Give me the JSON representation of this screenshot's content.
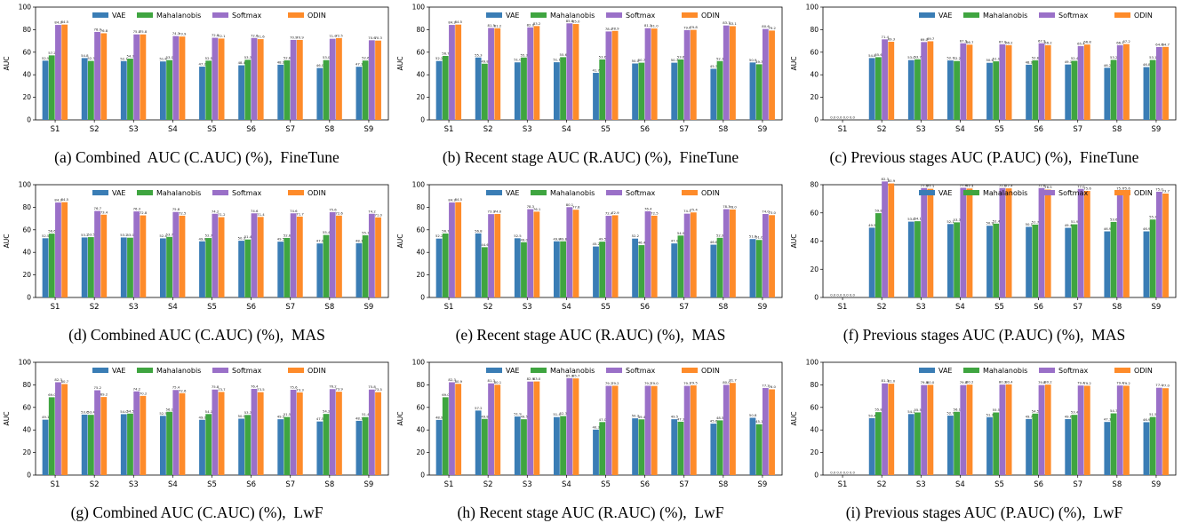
{
  "legend_labels": [
    "VAE",
    "Mahalanobis",
    "Softmax",
    "ODIN"
  ],
  "colors": [
    "#3A7DB5",
    "#3FA540",
    "#9A70C8",
    "#FE8B2A"
  ],
  "chart_data": [
    {
      "type": "bar",
      "prefix": "(a)",
      "title": "Combined  AUC (C.AUC) (%),  FineTune",
      "ylabel": "AUC",
      "ylim": [
        0,
        100
      ],
      "yticks": [
        0,
        20,
        40,
        60,
        80,
        100
      ],
      "categories": [
        "S1",
        "S2",
        "S3",
        "S4",
        "S5",
        "S6",
        "S7",
        "S8",
        "S9"
      ],
      "legend": "top",
      "series": [
        {
          "name": "VAE",
          "values": [
            52.5,
            54.8,
            52.1,
            51.8,
            47.2,
            48.4,
            48.9,
            46.0,
            47.1
          ]
        },
        {
          "name": "Mahalanobis",
          "values": [
            57.2,
            52.3,
            54.3,
            53.0,
            52.5,
            53.3,
            52.8,
            53.0,
            52.6
          ]
        },
        {
          "name": "Softmax",
          "values": [
            84.2,
            78.0,
            75.8,
            74.3,
            72.8,
            72.6,
            70.9,
            71.9,
            70.6
          ]
        },
        {
          "name": "ODIN",
          "values": [
            84.5,
            76.8,
            75.8,
            73.9,
            72.1,
            71.6,
            70.9,
            72.5,
            70.3
          ]
        }
      ]
    },
    {
      "type": "bar",
      "prefix": "(b)",
      "title": "Recent stage AUC (R.AUC) (%),  FineTune",
      "ylabel": "AUC",
      "ylim": [
        0,
        100
      ],
      "yticks": [
        0,
        20,
        40,
        60,
        80,
        100
      ],
      "categories": [
        "S1",
        "S2",
        "S3",
        "S4",
        "S5",
        "S6",
        "S7",
        "S8",
        "S9"
      ],
      "legend": "top",
      "series": [
        {
          "name": "VAE",
          "values": [
            52.2,
            55.3,
            51.0,
            51.1,
            41.7,
            50.0,
            50.7,
            45.3,
            50.9
          ]
        },
        {
          "name": "Mahalanobis",
          "values": [
            56.7,
            49.8,
            55.3,
            55.6,
            53.6,
            50.7,
            53.6,
            52.1,
            49.3
          ]
        },
        {
          "name": "Softmax",
          "values": [
            84.2,
            81.5,
            82.0,
            85.6,
            78.4,
            81.3,
            79.6,
            83.7,
            80.6
          ]
        },
        {
          "name": "ODIN",
          "values": [
            84.5,
            81.2,
            83.2,
            85.0,
            78.9,
            81.0,
            79.8,
            83.1,
            79.2
          ]
        }
      ]
    },
    {
      "type": "bar",
      "prefix": "(c)",
      "title": "Previous stages AUC (P.AUC) (%),  FineTune",
      "ylabel": "AUC",
      "ylim": [
        0,
        100
      ],
      "yticks": [
        0,
        20,
        40,
        60,
        80,
        100
      ],
      "categories": [
        "S1",
        "S2",
        "S3",
        "S4",
        "S5",
        "S6",
        "S7",
        "S8",
        "S9"
      ],
      "legend": "top-right",
      "series": [
        {
          "name": "VAE",
          "values": [
            0.0,
            54.8,
            53.0,
            52.7,
            50.6,
            48.9,
            49.1,
            46.2,
            46.8
          ]
        },
        {
          "name": "Mahalanobis",
          "values": [
            0.0,
            55.6,
            53.7,
            52.2,
            51.9,
            52.8,
            52.4,
            53.2,
            53.1
          ]
        },
        {
          "name": "Softmax",
          "values": [
            0.0,
            71.4,
            69.0,
            67.9,
            67.0,
            67.9,
            65.4,
            66.2,
            64.6
          ]
        },
        {
          "name": "ODIN",
          "values": [
            0.0,
            69.3,
            69.7,
            66.7,
            66.2,
            66.2,
            66.8,
            67.2,
            64.7
          ]
        }
      ]
    },
    {
      "type": "bar",
      "prefix": "(d)",
      "title": "Combined AUC (C.AUC) (%),  MAS",
      "ylabel": "AUC",
      "ylim": [
        0,
        100
      ],
      "yticks": [
        0,
        20,
        40,
        60,
        80,
        100
      ],
      "categories": [
        "S1",
        "S2",
        "S3",
        "S4",
        "S5",
        "S6",
        "S7",
        "S8",
        "S9"
      ],
      "legend": "top",
      "series": [
        {
          "name": "VAE",
          "values": [
            52.5,
            53.2,
            53.2,
            52.4,
            49.8,
            50.3,
            49.5,
            47.9,
            48.1
          ]
        },
        {
          "name": "Mahalanobis",
          "values": [
            56.6,
            53.5,
            53.0,
            53.7,
            52.7,
            51.4,
            52.8,
            55.4,
            55.1
          ]
        },
        {
          "name": "Softmax",
          "values": [
            84.2,
            76.7,
            76.3,
            75.8,
            74.2,
            74.6,
            74.6,
            75.6,
            74.2
          ]
        },
        {
          "name": "ODIN",
          "values": [
            84.5,
            73.4,
            72.8,
            72.5,
            71.2,
            71.4,
            71.7,
            72.6,
            71.0
          ]
        }
      ]
    },
    {
      "type": "bar",
      "prefix": "(e)",
      "title": "Recent stage AUC (R.AUC) (%),  MAS",
      "ylabel": "AUC",
      "ylim": [
        0,
        100
      ],
      "yticks": [
        0,
        20,
        40,
        60,
        80,
        100
      ],
      "categories": [
        "S1",
        "S2",
        "S3",
        "S4",
        "S5",
        "S6",
        "S7",
        "S8",
        "S9"
      ],
      "legend": "top",
      "series": [
        {
          "name": "VAE",
          "values": [
            52.2,
            56.8,
            52.5,
            49.8,
            45.2,
            52.2,
            47.9,
            46.8,
            51.8
          ]
        },
        {
          "name": "Mahalanobis",
          "values": [
            56.7,
            44.6,
            49.0,
            49.8,
            49.5,
            46.4,
            54.9,
            52.9,
            51.0
          ]
        },
        {
          "name": "Softmax",
          "values": [
            84.2,
            73.9,
            78.3,
            80.1,
            72.4,
            76.4,
            74.3,
            78.3,
            74.0
          ]
        },
        {
          "name": "ODIN",
          "values": [
            84.5,
            74.0,
            76.1,
            77.8,
            72.9,
            72.5,
            75.4,
            78.0,
            73.0
          ]
        }
      ]
    },
    {
      "type": "bar",
      "prefix": "(f)",
      "title": "Previous stages AUC (P.AUC) (%),  MAS",
      "ylabel": "AUC",
      "ylim": [
        0,
        80
      ],
      "yticks": [
        0,
        20,
        40,
        60,
        80
      ],
      "categories": [
        "S1",
        "S2",
        "S3",
        "S4",
        "S5",
        "S6",
        "S7",
        "S8",
        "S9"
      ],
      "legend": "top-right",
      "series": [
        {
          "name": "VAE",
          "values": [
            0.0,
            49.5,
            53.8,
            52.1,
            50.9,
            50.1,
            49.4,
            46.9,
            46.9
          ]
        },
        {
          "name": "Mahalanobis",
          "values": [
            0.0,
            59.8,
            54.1,
            53.3,
            52.4,
            51.7,
            51.9,
            53.6,
            55.3
          ]
        },
        {
          "name": "Softmax",
          "values": [
            0.0,
            82.3,
            77.6,
            77.8,
            77.6,
            77.6,
            77.0,
            75.7,
            75.0
          ]
        },
        {
          "name": "ODIN",
          "values": [
            0.0,
            80.9,
            77.1,
            77.3,
            77.4,
            76.5,
            75.6,
            75.6,
            73.7
          ]
        }
      ]
    },
    {
      "type": "bar",
      "prefix": "(g)",
      "title": "Combined AUC (C.AUC) (%),  LwF",
      "ylabel": "AUC",
      "ylim": [
        0,
        100
      ],
      "yticks": [
        0,
        20,
        40,
        60,
        80,
        100
      ],
      "categories": [
        "S1",
        "S2",
        "S3",
        "S4",
        "S5",
        "S6",
        "S7",
        "S8",
        "S9"
      ],
      "legend": "top",
      "series": [
        {
          "name": "VAE",
          "values": [
            49.1,
            53.6,
            54.0,
            52.5,
            49.0,
            50.0,
            49.5,
            47.5,
            48.1
          ]
        },
        {
          "name": "Mahalanobis",
          "values": [
            69.0,
            53.4,
            54.5,
            56.1,
            54.1,
            53.3,
            51.5,
            54.2,
            51.4
          ]
        },
        {
          "name": "Softmax",
          "values": [
            82.3,
            75.2,
            74.2,
            75.4,
            75.8,
            76.4,
            75.6,
            76.2,
            75.8
          ]
        },
        {
          "name": "ODIN",
          "values": [
            80.7,
            69.2,
            70.2,
            72.6,
            73.7,
            73.5,
            73.3,
            73.9,
            73.5
          ]
        }
      ]
    },
    {
      "type": "bar",
      "prefix": "(h)",
      "title": "Recent stage AUC (R.AUC) (%),  LwF",
      "ylabel": "AUC",
      "ylim": [
        0,
        100
      ],
      "yticks": [
        0,
        20,
        40,
        60,
        80,
        100
      ],
      "categories": [
        "S1",
        "S2",
        "S3",
        "S4",
        "S5",
        "S6",
        "S7",
        "S8",
        "S9"
      ],
      "legend": "top",
      "series": [
        {
          "name": "VAE",
          "values": [
            48.9,
            57.2,
            51.9,
            51.4,
            40.3,
            50.3,
            49.5,
            45.6,
            50.8
          ]
        },
        {
          "name": "Mahalanobis",
          "values": [
            69.0,
            49.8,
            49.5,
            52.3,
            47.0,
            49.4,
            47.3,
            48.5,
            45.1
          ]
        },
        {
          "name": "Softmax",
          "values": [
            82.3,
            81.3,
            82.9,
            85.9,
            79.1,
            79.2,
            79.1,
            80.0,
            77.2
          ]
        },
        {
          "name": "ODIN",
          "values": [
            80.9,
            80.1,
            83.0,
            85.7,
            79.2,
            79.0,
            79.5,
            81.7,
            76.0
          ]
        }
      ]
    },
    {
      "type": "bar",
      "prefix": "(i)",
      "title": "Previous stages AUC (P.AUC) (%),  LwF",
      "ylabel": "AUC",
      "ylim": [
        0,
        100
      ],
      "yticks": [
        0,
        20,
        40,
        60,
        80,
        100
      ],
      "categories": [
        "S1",
        "S2",
        "S3",
        "S4",
        "S5",
        "S6",
        "S7",
        "S8",
        "S9"
      ],
      "legend": "top-right",
      "series": [
        {
          "name": "VAE",
          "values": [
            0.0,
            50.4,
            54.1,
            52.7,
            51.3,
            49.7,
            49.6,
            47.1,
            46.9
          ]
        },
        {
          "name": "Mahalanobis",
          "values": [
            0.0,
            55.8,
            55.5,
            56.1,
            55.5,
            54.5,
            53.4,
            54.7,
            51.5
          ]
        },
        {
          "name": "Softmax",
          "values": [
            0.0,
            81.3,
            79.8,
            79.8,
            80.2,
            79.8,
            79.4,
            79.4,
            77.4
          ]
        },
        {
          "name": "ODIN",
          "values": [
            0.0,
            81.0,
            80.0,
            80.2,
            80.4,
            80.2,
            79.2,
            79.2,
            77.0
          ]
        }
      ]
    }
  ]
}
